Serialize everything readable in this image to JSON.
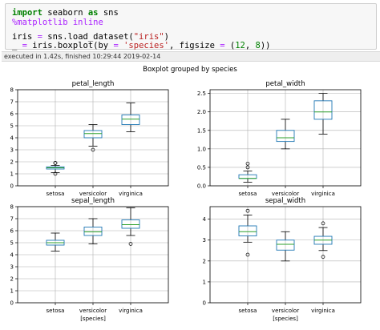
{
  "code": {
    "line1": {
      "kw1": "import",
      "mod": " seaborn ",
      "kw2": "as",
      "alias": " sns"
    },
    "line2": {
      "magic": "%matplotlib inline"
    },
    "line4": {
      "pre": "iris ",
      "op": "=",
      "mid": " sns.load_dataset(",
      "str": "\"iris\"",
      "post": ")"
    },
    "line5": {
      "pre": "_ ",
      "op1": "=",
      "mid1": " iris.boxplot(by ",
      "op2": "=",
      "sp": " ",
      "str": "'species'",
      "mid2": ", figsize ",
      "op3": "=",
      "mid3": " (",
      "n1": "12",
      "mid4": ", ",
      "n2": "8",
      "post": "))"
    }
  },
  "exec_status": "executed in 1.42s, finished 10:29:44 2019-02-14",
  "figure": {
    "suptitle": "Boxplot grouped by species",
    "xlabel": "[species]",
    "box_color": "#1f77b4",
    "median_color": "#2ca02c"
  },
  "chart_data": [
    {
      "type": "box",
      "title": "petal_length",
      "categories": [
        "setosa",
        "versicolor",
        "virginica"
      ],
      "ylim": [
        0,
        8
      ],
      "yticks": [
        "0",
        "1",
        "2",
        "3",
        "4",
        "5",
        "6",
        "7",
        "8"
      ],
      "xlabel": "",
      "grid": true,
      "boxes": [
        {
          "whisker_low": 1.1,
          "q1": 1.4,
          "median": 1.5,
          "q3": 1.58,
          "whisker_high": 1.7,
          "outliers": [
            1.0,
            1.9,
            1.9
          ]
        },
        {
          "whisker_low": 3.3,
          "q1": 4.0,
          "median": 4.35,
          "q3": 4.6,
          "whisker_high": 5.1,
          "outliers": [
            3.0
          ]
        },
        {
          "whisker_low": 4.5,
          "q1": 5.1,
          "median": 5.55,
          "q3": 5.9,
          "whisker_high": 6.9,
          "outliers": []
        }
      ]
    },
    {
      "type": "box",
      "title": "petal_width",
      "categories": [
        "setosa",
        "versicolor",
        "virginica"
      ],
      "ylim": [
        0,
        2.6
      ],
      "yticks": [
        "0.0",
        "0.5",
        "1.0",
        "1.5",
        "2.0",
        "2.5"
      ],
      "xlabel": "",
      "grid": true,
      "boxes": [
        {
          "whisker_low": 0.1,
          "q1": 0.2,
          "median": 0.2,
          "q3": 0.3,
          "whisker_high": 0.4,
          "outliers": [
            0.5,
            0.6
          ]
        },
        {
          "whisker_low": 1.0,
          "q1": 1.2,
          "median": 1.3,
          "q3": 1.5,
          "whisker_high": 1.8,
          "outliers": []
        },
        {
          "whisker_low": 1.4,
          "q1": 1.8,
          "median": 2.0,
          "q3": 2.3,
          "whisker_high": 2.5,
          "outliers": []
        }
      ]
    },
    {
      "type": "box",
      "title": "sepal_length",
      "categories": [
        "setosa",
        "versicolor",
        "virginica"
      ],
      "ylim": [
        0,
        8
      ],
      "yticks": [
        "0",
        "1",
        "2",
        "3",
        "4",
        "5",
        "6",
        "7",
        "8"
      ],
      "xlabel": "[species]",
      "grid": true,
      "boxes": [
        {
          "whisker_low": 4.3,
          "q1": 4.8,
          "median": 5.0,
          "q3": 5.2,
          "whisker_high": 5.8,
          "outliers": []
        },
        {
          "whisker_low": 4.9,
          "q1": 5.6,
          "median": 5.9,
          "q3": 6.3,
          "whisker_high": 7.0,
          "outliers": []
        },
        {
          "whisker_low": 5.6,
          "q1": 6.2,
          "median": 6.5,
          "q3": 6.9,
          "whisker_high": 7.9,
          "outliers": [
            4.9
          ]
        }
      ]
    },
    {
      "type": "box",
      "title": "sepal_width",
      "categories": [
        "setosa",
        "versicolor",
        "virginica"
      ],
      "ylim": [
        0,
        4.6
      ],
      "yticks": [
        "0",
        "1",
        "2",
        "3",
        "4"
      ],
      "xlabel": "[species]",
      "grid": true,
      "boxes": [
        {
          "whisker_low": 2.9,
          "q1": 3.2,
          "median": 3.4,
          "q3": 3.68,
          "whisker_high": 4.2,
          "outliers": [
            2.3,
            4.4
          ]
        },
        {
          "whisker_low": 2.0,
          "q1": 2.52,
          "median": 2.8,
          "q3": 3.0,
          "whisker_high": 3.4,
          "outliers": []
        },
        {
          "whisker_low": 2.5,
          "q1": 2.8,
          "median": 3.0,
          "q3": 3.18,
          "whisker_high": 3.6,
          "outliers": [
            2.2,
            3.8
          ]
        }
      ]
    }
  ]
}
